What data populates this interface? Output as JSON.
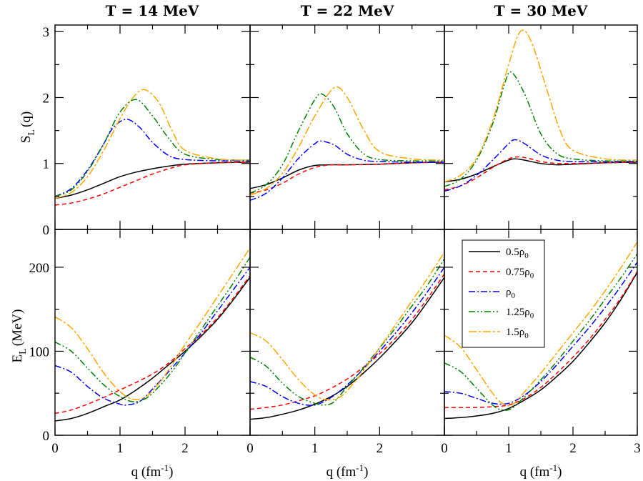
{
  "chart_data": {
    "type": "line",
    "column_titles": [
      "T = 14 MeV",
      "T = 22 MeV",
      "T = 30 MeV"
    ],
    "xlabel": "q (fm",
    "xlabel_sup": "-1",
    "xlabel_close": ")",
    "xlim": [
      0,
      3
    ],
    "xticks": [
      0,
      1,
      2,
      3
    ],
    "xtick_labels": [
      [
        "0",
        "1",
        "2",
        ""
      ],
      [
        "0",
        "1",
        "2",
        ""
      ],
      [
        "0",
        "1",
        "2",
        "3"
      ]
    ],
    "top_ylabel": {
      "main": "S",
      "sub": "L",
      "tail": "(q)"
    },
    "top_ylim": [
      0,
      3.1
    ],
    "top_yticks": [
      0,
      1,
      2,
      3
    ],
    "top_ytick_labels": [
      "0",
      "1",
      "2",
      "3"
    ],
    "bottom_ylabel": {
      "main": "E",
      "sub": "L",
      "tail": "(MeV)"
    },
    "bottom_ylim": [
      0,
      245
    ],
    "bottom_yticks": [
      0,
      100,
      200
    ],
    "bottom_ytick_labels": [
      "0",
      "100",
      "200"
    ],
    "legend": {
      "position": "top-left of lower-right panel",
      "entries": [
        {
          "prefix": "0.5",
          "sym": "ρ",
          "sub": "0",
          "color": "#000000",
          "dash": ""
        },
        {
          "prefix": "0.75",
          "sym": "ρ",
          "sub": "0",
          "color": "#ff0000",
          "dash": "6,4"
        },
        {
          "prefix": "",
          "sym": "ρ",
          "sub": "0",
          "color": "#0000ff",
          "dash": "9,3,2,3"
        },
        {
          "prefix": "1.25",
          "sym": "ρ",
          "sub": "0",
          "color": "#008000",
          "dash": "9,3,2,3,2,3"
        },
        {
          "prefix": "1.5",
          "sym": "ρ",
          "sub": "0",
          "color": "#ffa500",
          "dash": "11,3,3,3"
        }
      ]
    },
    "series_colors": [
      "#000000",
      "#ff0000",
      "#0000ff",
      "#008000",
      "#ffa500"
    ],
    "panels": {
      "S": [
        [
          {
            "name": "0.5ρ0",
            "x": [
              0,
              0.25,
              0.5,
              0.75,
              1,
              1.25,
              1.5,
              1.75,
              2,
              2.5,
              3
            ],
            "y": [
              0.47,
              0.52,
              0.6,
              0.7,
              0.8,
              0.87,
              0.92,
              0.96,
              0.99,
              1.01,
              1.02
            ]
          },
          {
            "name": "0.75ρ0",
            "x": [
              0,
              0.25,
              0.5,
              0.75,
              1,
              1.25,
              1.5,
              1.75,
              2,
              2.5,
              3
            ],
            "y": [
              0.37,
              0.4,
              0.46,
              0.54,
              0.64,
              0.74,
              0.84,
              0.92,
              0.98,
              1.01,
              1.02
            ]
          },
          {
            "name": "ρ0",
            "x": [
              0,
              0.25,
              0.5,
              0.75,
              0.9,
              1.1,
              1.3,
              1.5,
              1.75,
              2,
              2.5,
              3
            ],
            "y": [
              0.5,
              0.62,
              0.9,
              1.3,
              1.55,
              1.67,
              1.55,
              1.32,
              1.12,
              1.06,
              1.04,
              1.04
            ]
          },
          {
            "name": "1.25ρ0",
            "x": [
              0,
              0.25,
              0.5,
              0.75,
              1,
              1.25,
              1.5,
              1.75,
              2,
              2.5,
              3
            ],
            "y": [
              0.5,
              0.6,
              0.88,
              1.3,
              1.78,
              1.97,
              1.72,
              1.38,
              1.14,
              1.06,
              1.05
            ]
          },
          {
            "name": "1.5ρ0",
            "x": [
              0,
              0.25,
              0.5,
              0.75,
              1,
              1.2,
              1.38,
              1.6,
              1.8,
              2,
              2.5,
              3
            ],
            "y": [
              0.47,
              0.56,
              0.8,
              1.2,
              1.68,
              2.0,
              2.12,
              1.92,
              1.5,
              1.2,
              1.07,
              1.05
            ]
          }
        ],
        [
          {
            "name": "0.5ρ0",
            "x": [
              0,
              0.25,
              0.5,
              0.75,
              1,
              1.25,
              1.5,
              2,
              2.5,
              3
            ],
            "y": [
              0.62,
              0.68,
              0.78,
              0.9,
              0.97,
              0.98,
              0.98,
              0.99,
              1.01,
              1.02
            ]
          },
          {
            "name": "0.75ρ0",
            "x": [
              0,
              0.25,
              0.5,
              0.75,
              1,
              1.25,
              1.5,
              2,
              2.5,
              3
            ],
            "y": [
              0.55,
              0.6,
              0.7,
              0.84,
              0.94,
              0.98,
              0.98,
              0.99,
              1.01,
              1.02
            ]
          },
          {
            "name": "ρ0",
            "x": [
              0,
              0.25,
              0.5,
              0.75,
              1,
              1.1,
              1.3,
              1.5,
              1.75,
              2,
              2.5,
              3
            ],
            "y": [
              0.44,
              0.55,
              0.78,
              1.08,
              1.3,
              1.34,
              1.28,
              1.14,
              1.05,
              1.03,
              1.02,
              1.02
            ]
          },
          {
            "name": "1.25ρ0",
            "x": [
              0,
              0.25,
              0.5,
              0.75,
              1,
              1.12,
              1.3,
              1.5,
              1.75,
              2,
              2.5,
              3
            ],
            "y": [
              0.55,
              0.68,
              0.98,
              1.5,
              1.97,
              2.05,
              1.85,
              1.45,
              1.15,
              1.06,
              1.04,
              1.04
            ]
          },
          {
            "name": "1.5ρ0",
            "x": [
              0,
              0.25,
              0.5,
              0.75,
              1,
              1.3,
              1.5,
              1.75,
              2,
              2.5,
              3
            ],
            "y": [
              0.52,
              0.62,
              0.85,
              1.25,
              1.72,
              2.15,
              2.0,
              1.52,
              1.18,
              1.07,
              1.05
            ]
          }
        ],
        [
          {
            "name": "0.5ρ0",
            "x": [
              0,
              0.25,
              0.5,
              0.75,
              1,
              1.1,
              1.25,
              1.5,
              1.75,
              2,
              2.5,
              3
            ],
            "y": [
              0.72,
              0.76,
              0.84,
              0.95,
              1.05,
              1.07,
              1.05,
              1.0,
              0.98,
              0.99,
              1.01,
              1.02
            ]
          },
          {
            "name": "0.75ρ0",
            "x": [
              0,
              0.25,
              0.5,
              0.75,
              1,
              1.15,
              1.3,
              1.5,
              1.75,
              2,
              2.5,
              3
            ],
            "y": [
              0.6,
              0.66,
              0.78,
              0.94,
              1.07,
              1.1,
              1.08,
              1.03,
              1.0,
              1.0,
              1.01,
              1.02
            ]
          },
          {
            "name": "ρ0",
            "x": [
              0,
              0.25,
              0.5,
              0.75,
              1,
              1.1,
              1.25,
              1.5,
              1.75,
              2,
              2.5,
              3
            ],
            "y": [
              0.58,
              0.66,
              0.82,
              1.05,
              1.3,
              1.36,
              1.3,
              1.13,
              1.05,
              1.03,
              1.03,
              1.03
            ]
          },
          {
            "name": "1.25ρ0",
            "x": [
              0,
              0.25,
              0.5,
              0.75,
              0.95,
              1.05,
              1.25,
              1.5,
              1.75,
              2,
              2.5,
              3
            ],
            "y": [
              0.65,
              0.76,
              1.05,
              1.6,
              2.25,
              2.38,
              2.05,
              1.45,
              1.15,
              1.07,
              1.04,
              1.04
            ]
          },
          {
            "name": "1.5ρ0",
            "x": [
              0,
              0.25,
              0.5,
              0.75,
              1,
              1.18,
              1.35,
              1.6,
              1.8,
              2,
              2.5,
              3
            ],
            "y": [
              0.72,
              0.82,
              1.08,
              1.65,
              2.5,
              3.0,
              2.85,
              2.1,
              1.5,
              1.2,
              1.07,
              1.05
            ]
          }
        ]
      ],
      "E": [
        [
          {
            "name": "0.5ρ0",
            "x": [
              0,
              0.25,
              0.5,
              0.75,
              1,
              1.25,
              1.5,
              1.75,
              2,
              2.25,
              2.5,
              2.75,
              3
            ],
            "y": [
              17,
              20,
              26,
              34,
              42,
              54,
              68,
              84,
              100,
              118,
              138,
              162,
              188
            ]
          },
          {
            "name": "0.75ρ0",
            "x": [
              0,
              0.25,
              0.5,
              0.75,
              1,
              1.25,
              1.5,
              1.75,
              2,
              2.25,
              2.5,
              2.75,
              3
            ],
            "y": [
              26,
              30,
              37,
              45,
              54,
              63,
              73,
              86,
              103,
              120,
              140,
              164,
              190
            ]
          },
          {
            "name": "ρ0",
            "x": [
              0,
              0.25,
              0.5,
              0.75,
              1,
              1.1,
              1.3,
              1.5,
              1.75,
              2,
              2.25,
              2.5,
              2.75,
              3
            ],
            "y": [
              83,
              75,
              58,
              44,
              37,
              36,
              40,
              55,
              76,
              98,
              122,
              148,
              174,
              200
            ]
          },
          {
            "name": "1.25ρ0",
            "x": [
              0,
              0.25,
              0.5,
              0.75,
              1,
              1.2,
              1.4,
              1.6,
              1.8,
              2,
              2.25,
              2.5,
              2.75,
              3
            ],
            "y": [
              111,
              100,
              80,
              60,
              46,
              40,
              44,
              58,
              76,
              98,
              126,
              154,
              182,
              212
            ]
          },
          {
            "name": "1.5ρ0",
            "x": [
              0,
              0.25,
              0.5,
              0.75,
              1,
              1.2,
              1.4,
              1.6,
              1.8,
              2,
              2.25,
              2.5,
              2.75,
              3
            ],
            "y": [
              141,
              128,
              103,
              74,
              52,
              43,
              46,
              62,
              84,
              108,
              136,
              165,
              194,
              223
            ]
          }
        ],
        [
          {
            "name": "0.5ρ0",
            "x": [
              0,
              0.25,
              0.5,
              0.75,
              1,
              1.25,
              1.5,
              1.75,
              2,
              2.25,
              2.5,
              2.75,
              3
            ],
            "y": [
              19,
              21,
              25,
              30,
              37,
              46,
              58,
              74,
              92,
              112,
              134,
              160,
              188
            ]
          },
          {
            "name": "0.75ρ0",
            "x": [
              0,
              0.25,
              0.5,
              0.75,
              1,
              1.25,
              1.5,
              1.75,
              2,
              2.25,
              2.5,
              2.75,
              3
            ],
            "y": [
              31,
              33,
              36,
              41,
              47,
              56,
              67,
              81,
              97,
              116,
              138,
              164,
              192
            ]
          },
          {
            "name": "ρ0",
            "x": [
              0,
              0.25,
              0.5,
              0.75,
              1,
              1.25,
              1.5,
              1.75,
              2,
              2.25,
              2.5,
              2.75,
              3
            ],
            "y": [
              64,
              58,
              46,
              38,
              36,
              45,
              60,
              79,
              100,
              122,
              146,
              172,
              200
            ]
          },
          {
            "name": "1.25ρ0",
            "x": [
              0,
              0.25,
              0.5,
              0.75,
              1,
              1.15,
              1.3,
              1.5,
              1.75,
              2,
              2.25,
              2.5,
              2.75,
              3
            ],
            "y": [
              93,
              82,
              62,
              46,
              38,
              36,
              40,
              58,
              80,
              104,
              128,
              154,
              180,
              210
            ]
          },
          {
            "name": "1.5ρ0",
            "x": [
              0,
              0.25,
              0.5,
              0.75,
              1,
              1.2,
              1.4,
              1.6,
              1.8,
              2,
              2.25,
              2.5,
              2.75,
              3
            ],
            "y": [
              122,
              112,
              90,
              66,
              48,
              42,
              46,
              62,
              82,
              104,
              132,
              160,
              188,
              218
            ]
          }
        ],
        [
          {
            "name": "0.5ρ0",
            "x": [
              0,
              0.25,
              0.5,
              0.75,
              1,
              1.25,
              1.5,
              1.75,
              2,
              2.25,
              2.5,
              2.75,
              3
            ],
            "y": [
              20,
              21,
              23,
              26,
              32,
              42,
              54,
              70,
              88,
              110,
              134,
              162,
              194
            ]
          },
          {
            "name": "0.75ρ0",
            "x": [
              0,
              0.25,
              0.5,
              0.75,
              1,
              1.25,
              1.5,
              1.75,
              2,
              2.25,
              2.5,
              2.75,
              3
            ],
            "y": [
              33,
              33,
              33,
              34,
              36,
              44,
              57,
              74,
              93,
              114,
              138,
              164,
              195
            ]
          },
          {
            "name": "ρ0",
            "x": [
              0,
              0.25,
              0.5,
              0.75,
              1,
              1.25,
              1.5,
              1.75,
              2,
              2.25,
              2.5,
              2.75,
              3
            ],
            "y": [
              52,
              50,
              44,
              38,
              38,
              48,
              64,
              84,
              106,
              128,
              152,
              178,
              206
            ]
          },
          {
            "name": "1.25ρ0",
            "x": [
              0,
              0.25,
              0.5,
              0.75,
              0.9,
              1.05,
              1.25,
              1.5,
              1.75,
              2,
              2.25,
              2.5,
              2.75,
              3
            ],
            "y": [
              86,
              76,
              56,
              36,
              30,
              32,
              46,
              66,
              88,
              112,
              136,
              162,
              188,
              216
            ]
          },
          {
            "name": "1.5ρ0",
            "x": [
              0,
              0.25,
              0.5,
              0.75,
              0.9,
              1.05,
              1.25,
              1.5,
              1.75,
              2,
              2.25,
              2.5,
              2.75,
              3
            ],
            "y": [
              119,
              105,
              78,
              50,
              38,
              36,
              52,
              74,
              98,
              122,
              146,
              172,
              200,
              230
            ]
          }
        ]
      ]
    }
  }
}
